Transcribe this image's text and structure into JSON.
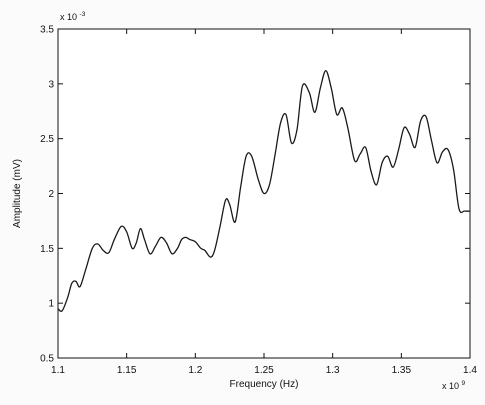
{
  "chart_data": {
    "type": "line",
    "title": "",
    "xlabel": "Frequency (Hz)",
    "ylabel": "Amplitude (mV)",
    "x_scale_label": {
      "base": "x 10",
      "exp": "9"
    },
    "y_scale_label": {
      "base": "x 10",
      "exp": "-3"
    },
    "xlim": [
      1.1,
      1.4
    ],
    "ylim": [
      0.5,
      3.5
    ],
    "x_ticks": [
      "1.1",
      "1.15",
      "1.2",
      "1.25",
      "1.3",
      "1.35",
      "1.4"
    ],
    "y_ticks": [
      "0.5",
      "1",
      "1.5",
      "2",
      "2.5",
      "3",
      "3.5"
    ],
    "grid": false,
    "legend": "none",
    "line_color": "#1a1a1a",
    "series": [
      {
        "x": [
          1.1,
          1.103,
          1.107,
          1.11,
          1.113,
          1.116,
          1.12,
          1.125,
          1.129,
          1.133,
          1.137,
          1.141,
          1.146,
          1.15,
          1.154,
          1.157,
          1.16,
          1.163,
          1.167,
          1.171,
          1.175,
          1.179,
          1.183,
          1.187,
          1.19,
          1.193,
          1.196,
          1.2,
          1.204,
          1.207,
          1.211,
          1.214,
          1.218,
          1.222,
          1.225,
          1.229,
          1.233,
          1.237,
          1.241,
          1.246,
          1.25,
          1.254,
          1.258,
          1.262,
          1.266,
          1.27,
          1.274,
          1.278,
          1.283,
          1.287,
          1.291,
          1.295,
          1.299,
          1.303,
          1.307,
          1.311,
          1.316,
          1.32,
          1.324,
          1.328,
          1.332,
          1.336,
          1.34,
          1.344,
          1.348,
          1.352,
          1.356,
          1.36,
          1.364,
          1.368,
          1.372,
          1.376,
          1.38,
          1.384,
          1.388,
          1.392,
          1.396,
          1.4
        ],
        "y": [
          0.95,
          0.93,
          1.05,
          1.18,
          1.2,
          1.15,
          1.3,
          1.5,
          1.54,
          1.48,
          1.46,
          1.58,
          1.7,
          1.65,
          1.5,
          1.55,
          1.68,
          1.58,
          1.45,
          1.52,
          1.6,
          1.55,
          1.45,
          1.5,
          1.58,
          1.6,
          1.58,
          1.56,
          1.5,
          1.48,
          1.42,
          1.48,
          1.7,
          1.94,
          1.9,
          1.74,
          2.06,
          2.34,
          2.34,
          2.12,
          2.0,
          2.08,
          2.35,
          2.64,
          2.72,
          2.46,
          2.58,
          2.98,
          2.92,
          2.74,
          2.96,
          3.12,
          2.96,
          2.72,
          2.78,
          2.6,
          2.3,
          2.36,
          2.42,
          2.2,
          2.08,
          2.28,
          2.34,
          2.24,
          2.4,
          2.6,
          2.54,
          2.42,
          2.66,
          2.7,
          2.48,
          2.28,
          2.38,
          2.4,
          2.22,
          1.86,
          1.84,
          1.84
        ]
      }
    ]
  }
}
